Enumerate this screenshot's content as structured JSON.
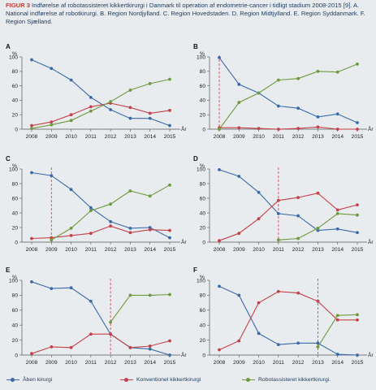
{
  "caption": {
    "label": "FIGUR 3",
    "text": " Indførelse af robotassisteret kikkertkirurgi i Danmark til operation af endometrie-cancer i tidligt stadium 2008-2015 [9]. A. National indførelse af robotkirurgi. B. Region Nordjylland. C. Region Hovedstaden. D. Region Midtjylland. E. Region Syddanmark. F. Region Sjælland."
  },
  "colors": {
    "blue": "#3b6aa8",
    "red": "#c4404a",
    "green": "#6e9a3e",
    "dashed": "#d24a55",
    "axis": "#555555"
  },
  "legend": [
    {
      "label": "Åben kirurgi",
      "color": "#3b6aa8"
    },
    {
      "label": "Konventionel kikkertkirurgi",
      "color": "#c4404a"
    },
    {
      "label": "Robotassisteret kikkertkirurgi.",
      "color": "#6e9a3e"
    }
  ],
  "chart_data": [
    {
      "panel": "A",
      "type": "line",
      "ylabel": "%",
      "xlabel": "År",
      "x": [
        2008,
        2009,
        2010,
        2011,
        2012,
        2013,
        2014,
        2015
      ],
      "ylim": [
        0,
        100
      ],
      "yticks": [
        0,
        20,
        40,
        60,
        80,
        100
      ],
      "grid": false,
      "series": [
        {
          "name": "Åben kirurgi",
          "x": [
            2008,
            2009,
            2010,
            2011,
            2012,
            2013,
            2014,
            2015
          ],
          "values": [
            96,
            84,
            68,
            44,
            27,
            15,
            15,
            5
          ]
        },
        {
          "name": "Konventionel kikkertkirurgi",
          "x": [
            2008,
            2009,
            2010,
            2011,
            2012,
            2013,
            2014,
            2015
          ],
          "values": [
            5,
            10,
            20,
            31,
            36,
            30,
            22,
            26
          ]
        },
        {
          "name": "Robotassisteret kikkertkirurgi.",
          "x": [
            2008,
            2009,
            2010,
            2011,
            2012,
            2013,
            2014,
            2015
          ],
          "values": [
            1,
            6,
            12,
            25,
            38,
            54,
            63,
            69
          ]
        }
      ]
    },
    {
      "panel": "B",
      "type": "line",
      "ylabel": "%",
      "xlabel": "År",
      "x": [
        2008,
        2009,
        2010,
        2011,
        2012,
        2013,
        2014,
        2015
      ],
      "ylim": [
        0,
        100
      ],
      "yticks": [
        0,
        20,
        40,
        60,
        80,
        100
      ],
      "grid": false,
      "vline": 2008,
      "series": [
        {
          "name": "Åben kirurgi",
          "x": [
            2008,
            2009,
            2010,
            2011,
            2012,
            2013,
            2014,
            2015
          ],
          "values": [
            99,
            62,
            50,
            32,
            29,
            17,
            21,
            9
          ]
        },
        {
          "name": "Konventionel kikkertkirurgi",
          "x": [
            2008,
            2009,
            2010,
            2011,
            2012,
            2013,
            2014,
            2015
          ],
          "values": [
            2,
            2,
            1,
            0,
            1,
            3,
            0,
            0
          ]
        },
        {
          "name": "Robotassisteret kikkertkirurgi.",
          "x": [
            2008,
            2009,
            2010,
            2011,
            2012,
            2013,
            2014,
            2015
          ],
          "values": [
            0,
            37,
            50,
            68,
            70,
            80,
            79,
            90
          ]
        }
      ]
    },
    {
      "panel": "C",
      "type": "line",
      "ylabel": "%",
      "xlabel": "År",
      "x": [
        2008,
        2009,
        2010,
        2011,
        2012,
        2013,
        2014,
        2015
      ],
      "ylim": [
        0,
        100
      ],
      "yticks": [
        0,
        20,
        40,
        60,
        80,
        100
      ],
      "grid": false,
      "vline": 2009,
      "series": [
        {
          "name": "Åben kirurgi",
          "x": [
            2008,
            2009,
            2010,
            2011,
            2012,
            2013,
            2014,
            2015
          ],
          "values": [
            95,
            91,
            72,
            47,
            28,
            19,
            20,
            6
          ]
        },
        {
          "name": "Konventionel kikkertkirurgi",
          "x": [
            2008,
            2009,
            2010,
            2011,
            2012,
            2013,
            2014,
            2015
          ],
          "values": [
            5,
            6,
            9,
            12,
            22,
            13,
            17,
            16
          ]
        },
        {
          "name": "Robotassisteret kikkertkirurgi.",
          "x": [
            2009,
            2010,
            2011,
            2012,
            2013,
            2014,
            2015
          ],
          "values": [
            3,
            19,
            43,
            52,
            70,
            63,
            78
          ]
        }
      ]
    },
    {
      "panel": "D",
      "type": "line",
      "ylabel": "%",
      "xlabel": "År",
      "x": [
        2008,
        2009,
        2010,
        2011,
        2012,
        2013,
        2014,
        2015
      ],
      "ylim": [
        0,
        100
      ],
      "yticks": [
        0,
        20,
        40,
        60,
        80,
        100
      ],
      "grid": false,
      "vline": 2011,
      "series": [
        {
          "name": "Åben kirurgi",
          "x": [
            2008,
            2009,
            2010,
            2011,
            2012,
            2013,
            2014,
            2015
          ],
          "values": [
            99,
            90,
            68,
            39,
            36,
            16,
            18,
            13
          ]
        },
        {
          "name": "Konventionel kikkertkirurgi",
          "x": [
            2008,
            2009,
            2010,
            2011,
            2012,
            2013,
            2014,
            2015
          ],
          "values": [
            2,
            12,
            32,
            57,
            61,
            67,
            44,
            51
          ]
        },
        {
          "name": "Robotassisteret kikkertkirurgi.",
          "x": [
            2011,
            2012,
            2013,
            2014,
            2015
          ],
          "values": [
            3,
            5,
            19,
            39,
            37
          ]
        }
      ]
    },
    {
      "panel": "E",
      "type": "line",
      "ylabel": "%",
      "xlabel": "År",
      "x": [
        2008,
        2009,
        2010,
        2011,
        2012,
        2013,
        2014,
        2015
      ],
      "ylim": [
        0,
        100
      ],
      "yticks": [
        0,
        20,
        40,
        60,
        80,
        100
      ],
      "grid": false,
      "vline": 2012,
      "series": [
        {
          "name": "Åben kirurgi",
          "x": [
            2008,
            2009,
            2010,
            2011,
            2012,
            2013,
            2014,
            2015
          ],
          "values": [
            98,
            89,
            90,
            72,
            28,
            10,
            8,
            0
          ]
        },
        {
          "name": "Konventionel kikkertkirurgi",
          "x": [
            2008,
            2009,
            2010,
            2011,
            2012,
            2013,
            2014,
            2015
          ],
          "values": [
            2,
            11,
            10,
            28,
            28,
            10,
            12,
            19
          ]
        },
        {
          "name": "Robotassisteret kikkertkirurgi.",
          "x": [
            2012,
            2013,
            2014,
            2015
          ],
          "values": [
            44,
            80,
            80,
            81
          ]
        }
      ]
    },
    {
      "panel": "F",
      "type": "line",
      "ylabel": "%",
      "xlabel": "År",
      "x": [
        2008,
        2009,
        2010,
        2011,
        2012,
        2013,
        2014,
        2015
      ],
      "ylim": [
        0,
        100
      ],
      "yticks": [
        0,
        20,
        40,
        60,
        80,
        100
      ],
      "grid": false,
      "vline": 2013,
      "series": [
        {
          "name": "Åben kirurgi",
          "x": [
            2008,
            2009,
            2010,
            2011,
            2012,
            2013,
            2014,
            2015
          ],
          "values": [
            92,
            80,
            29,
            14,
            16,
            16,
            1,
            0
          ]
        },
        {
          "name": "Konventionel kikkertkirurgi",
          "x": [
            2008,
            2009,
            2010,
            2011,
            2012,
            2013,
            2014,
            2015
          ],
          "values": [
            7,
            19,
            70,
            85,
            83,
            72,
            47,
            47
          ]
        },
        {
          "name": "Robotassisteret kikkertkirurgi.",
          "x": [
            2013,
            2014,
            2015
          ],
          "values": [
            11,
            53,
            54
          ]
        }
      ]
    }
  ]
}
